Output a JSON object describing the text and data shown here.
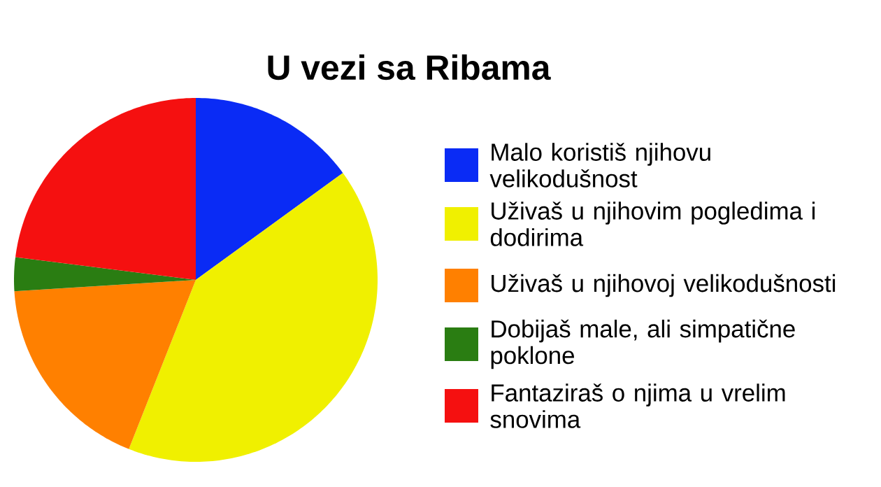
{
  "chart_data": {
    "type": "pie",
    "title": "U vezi sa Ribama",
    "categories": [
      "Malo koristiš njihovu velikodušnost",
      "Uživaš u njihovim pogledima i dodirima",
      "Uživaš u njihovoj velikodušnosti",
      "Dobijaš male, ali simpatične poklone",
      "Fantaziraš o njima u vrelim snovima"
    ],
    "values": [
      15,
      41,
      18,
      3,
      23
    ],
    "colors": [
      "#0a2bf5",
      "#f0f000",
      "#ff8000",
      "#2a7d12",
      "#f51010"
    ],
    "legend": "right"
  }
}
